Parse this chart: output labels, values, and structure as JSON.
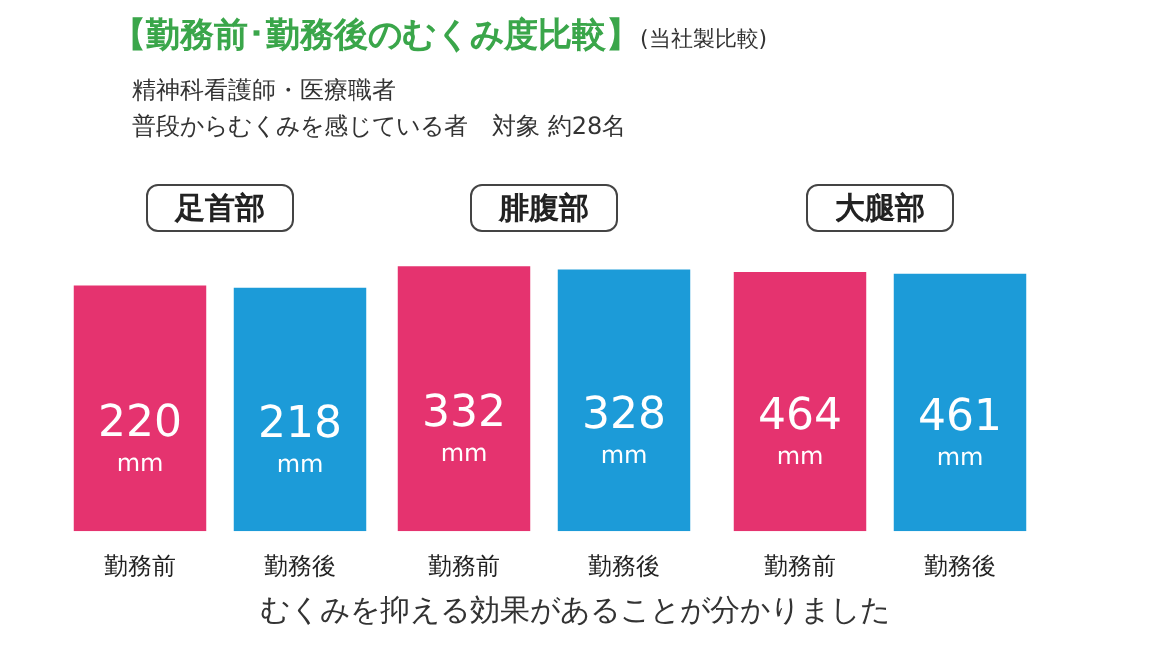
{
  "chart_data": [
    {
      "type": "other",
      "title": "【勤務前･勤務後のむくみ度比較】",
      "subtitle": "(当社製比較)",
      "annotations": [
        "精神科看護師・医療職者",
        "普段からむくみを感じている者　対象 約28名",
        "むくみを抑える効果があることが分かりました"
      ]
    },
    {
      "type": "bar",
      "title": "足首部",
      "categories": [
        "勤務前",
        "勤務後"
      ],
      "values": [
        220,
        218
      ],
      "colors": [
        "#e5336f",
        "#1c9bd8"
      ],
      "value_labels": [
        "220 mm",
        "218 mm"
      ]
    },
    {
      "type": "bar",
      "title": "腓腹部",
      "categories": [
        "勤務前",
        "勤務後"
      ],
      "values": [
        332,
        328
      ],
      "colors": [
        "#e5336f",
        "#1c9bd8"
      ],
      "value_labels": [
        "332 mm",
        "328 mm"
      ]
    },
    {
      "type": "bar",
      "title": "大腿部",
      "categories": [
        "勤務前",
        "勤務後"
      ],
      "values": [
        464,
        461
      ],
      "colors": [
        "#e5336f",
        "#1c9bd8"
      ],
      "value_labels": [
        "464 mm",
        "461 mm"
      ]
    }
  ]
}
